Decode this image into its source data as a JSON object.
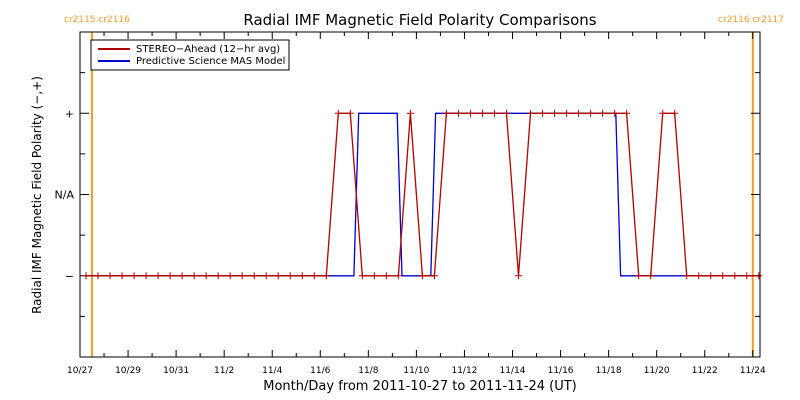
{
  "chart_data": {
    "type": "line",
    "title": "Radial IMF Magnetic Field Polarity Comparisons",
    "xlabel": "Month/Day from 2011-10-27 to 2011-11-24 (UT)",
    "ylabel": "Radial IMF Magnetic Field Polarity (−,+)",
    "xlim": [
      0,
      28.3
    ],
    "ylim": [
      -2,
      2
    ],
    "x_ticks": [
      {
        "x": 0,
        "label": "10/27"
      },
      {
        "x": 2,
        "label": "10/29"
      },
      {
        "x": 4,
        "label": "10/31"
      },
      {
        "x": 6,
        "label": "11/2"
      },
      {
        "x": 8,
        "label": "11/4"
      },
      {
        "x": 10,
        "label": "11/6"
      },
      {
        "x": 12,
        "label": "11/8"
      },
      {
        "x": 14,
        "label": "11/10"
      },
      {
        "x": 16,
        "label": "11/12"
      },
      {
        "x": 18,
        "label": "11/14"
      },
      {
        "x": 20,
        "label": "11/16"
      },
      {
        "x": 22,
        "label": "11/18"
      },
      {
        "x": 24,
        "label": "11/20"
      },
      {
        "x": 26,
        "label": "11/22"
      },
      {
        "x": 28,
        "label": "11/24"
      }
    ],
    "y_ticks": [
      {
        "y": 1,
        "label": "+"
      },
      {
        "y": 0,
        "label": "N/A"
      },
      {
        "y": -1,
        "label": "−"
      }
    ],
    "legend": "top-left",
    "series": [
      {
        "name": "STEREO−Ahead (12−hr avg)",
        "color": "#b00000",
        "markers": true,
        "x": [
          0.25,
          0.75,
          1.25,
          1.75,
          2.25,
          2.75,
          3.25,
          3.75,
          4.25,
          4.75,
          5.25,
          5.75,
          6.25,
          6.75,
          7.25,
          7.75,
          8.25,
          8.75,
          9.25,
          9.75,
          10.25,
          10.75,
          11.25,
          11.75,
          12.25,
          12.75,
          13.25,
          13.75,
          14.25,
          14.75,
          15.25,
          15.75,
          16.25,
          16.75,
          17.25,
          17.75,
          18.25,
          18.75,
          19.25,
          19.75,
          20.25,
          20.75,
          21.25,
          21.75,
          22.25,
          22.75,
          23.25,
          23.75,
          24.25,
          24.75,
          25.25,
          25.75,
          26.25,
          26.75,
          27.25,
          27.75,
          28.25
        ],
        "y": [
          -1,
          -1,
          -1,
          -1,
          -1,
          -1,
          -1,
          -1,
          -1,
          -1,
          -1,
          -1,
          -1,
          -1,
          -1,
          -1,
          -1,
          -1,
          -1,
          -1,
          -1,
          1,
          1,
          -1,
          -1,
          -1,
          -1,
          1,
          -1,
          -1,
          1,
          1,
          1,
          1,
          1,
          1,
          -1,
          1,
          1,
          1,
          1,
          1,
          1,
          1,
          1,
          1,
          -1,
          -1,
          1,
          1,
          -1,
          -1,
          -1,
          -1,
          -1,
          -1,
          -1
        ]
      },
      {
        "name": "Predictive Science MAS Model",
        "color": "#0000cc",
        "markers": false,
        "x": [
          0.25,
          11.4,
          11.6,
          13.2,
          13.4,
          14.6,
          14.8,
          22.3,
          22.5,
          28.25
        ],
        "y": [
          -1,
          -1,
          1,
          1,
          -1,
          -1,
          1,
          1,
          -1,
          -1
        ]
      }
    ],
    "vertical_markers": [
      {
        "x": 0.5,
        "color": "#f0a030",
        "label": "cr2115 cr2116",
        "side": "left"
      },
      {
        "x": 28.0,
        "color": "#f0a030",
        "label": "cr2116 cr2117",
        "side": "right"
      }
    ]
  }
}
